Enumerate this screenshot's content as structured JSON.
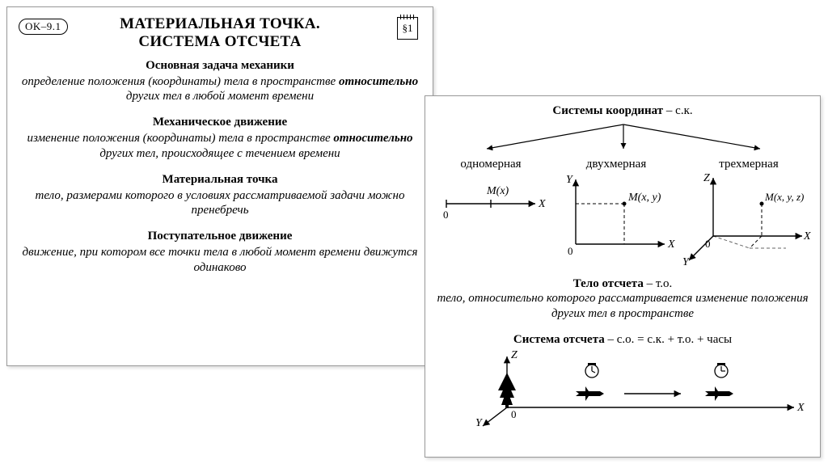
{
  "left": {
    "ok": "OK–9.1",
    "section": "§1",
    "title1": "МАТЕРИАЛЬНАЯ ТОЧКА.",
    "title2": "СИСТЕМА ОТСЧЕТА",
    "b1h": "Основная задача механики",
    "b1t": "определение положения (координаты) тела в пространстве <em class='b'>относительно</em> других тел в любой момент времени",
    "b2h": "Механическое движение",
    "b2t": "изменение положения (координаты) тела в пространстве <em class='b'>относительно</em> других тел, происходящее с течением времени",
    "b3h": "Материальная точка",
    "b3t": "тело, размерами которого  в условиях рассматриваемой задачи можно пренебречь",
    "b4h": "Поступательное движение",
    "b4t": "движение, при котором все точки тела в любой момент времени движутся одинаково"
  },
  "right": {
    "coordsTitle": "<b>Системы координат</b> – с.к.",
    "oneD": "одномерная",
    "twoD": "двухмерная",
    "threeD": "трехмерная",
    "m1": "M(x)",
    "m2": "M(x, y)",
    "m3": "M(x, y, z)",
    "X": "X",
    "Y": "Y",
    "Z": "Z",
    "zero": "0",
    "refBodyH": "<b>Тело отсчета</b> – т.о.",
    "refBodyT": "тело, относительно которого рассматривается изменение положения других тел в пространстве",
    "sysH": "<b>Система отсчета</b> – с.о. = с.к. + т.о. + часы"
  },
  "style": {
    "stroke": "#000000",
    "fill": "#000000",
    "dash": "4,3",
    "axisFont": 14,
    "labelFont": 13
  }
}
